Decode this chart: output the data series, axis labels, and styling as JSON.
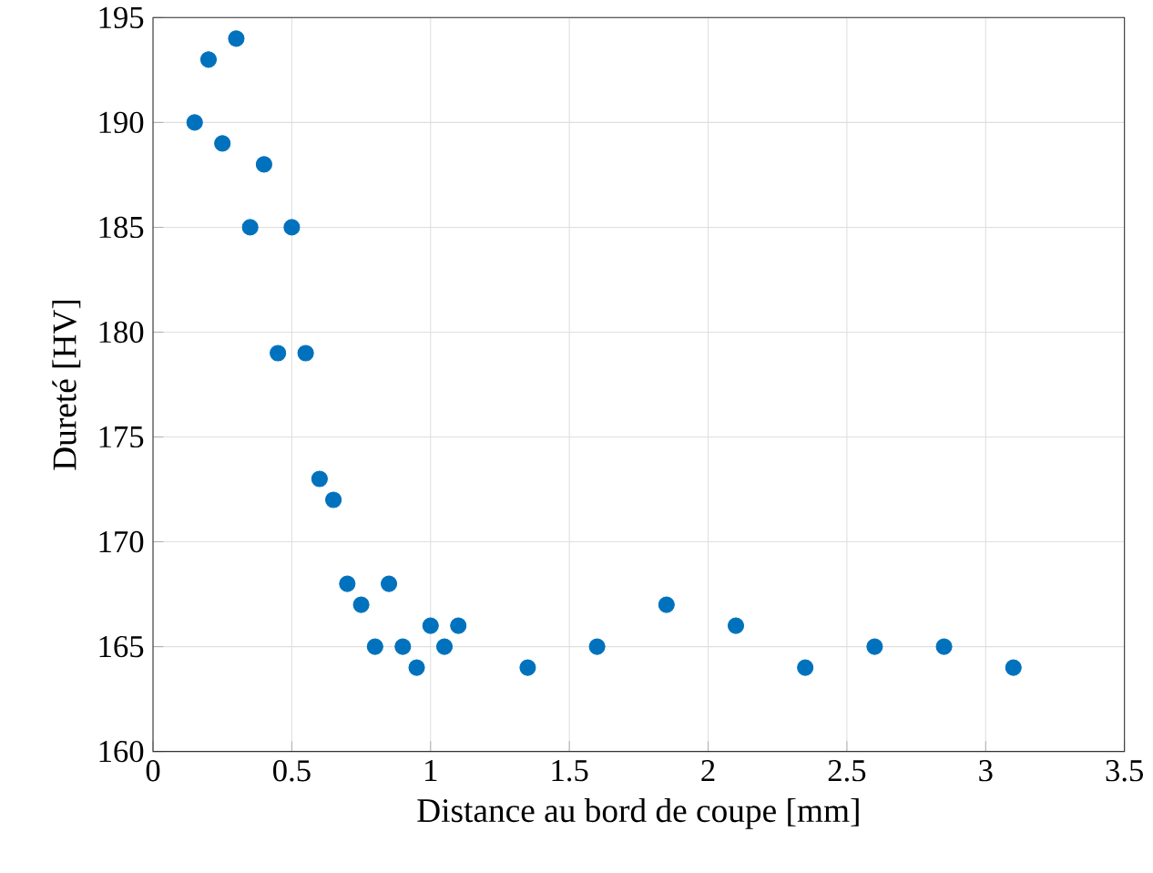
{
  "chart_data": {
    "type": "scatter",
    "xlabel": "Distance au bord de coupe [mm]",
    "ylabel": "Dureté [HV]",
    "x": [
      0.15,
      0.2,
      0.25,
      0.3,
      0.35,
      0.4,
      0.45,
      0.5,
      0.55,
      0.6,
      0.65,
      0.7,
      0.75,
      0.8,
      0.85,
      0.9,
      0.95,
      1.0,
      1.05,
      1.1,
      1.35,
      1.6,
      1.85,
      2.1,
      2.35,
      2.6,
      2.85,
      3.1
    ],
    "series": [
      {
        "color": "#0072bd",
        "values": [
          190,
          193,
          189,
          194,
          185,
          188,
          179,
          185,
          179,
          173,
          172,
          168,
          167,
          165,
          168,
          165,
          164,
          166,
          165,
          166,
          164,
          165,
          167,
          166,
          164,
          165,
          165,
          164
        ]
      }
    ],
    "xlim": [
      0,
      3.5
    ],
    "ylim": [
      160,
      195
    ],
    "xticks": [
      0,
      0.5,
      1,
      1.5,
      2,
      2.5,
      3,
      3.5
    ],
    "yticks": [
      160,
      165,
      170,
      175,
      180,
      185,
      190,
      195
    ],
    "grid": true,
    "marker": "circle"
  }
}
